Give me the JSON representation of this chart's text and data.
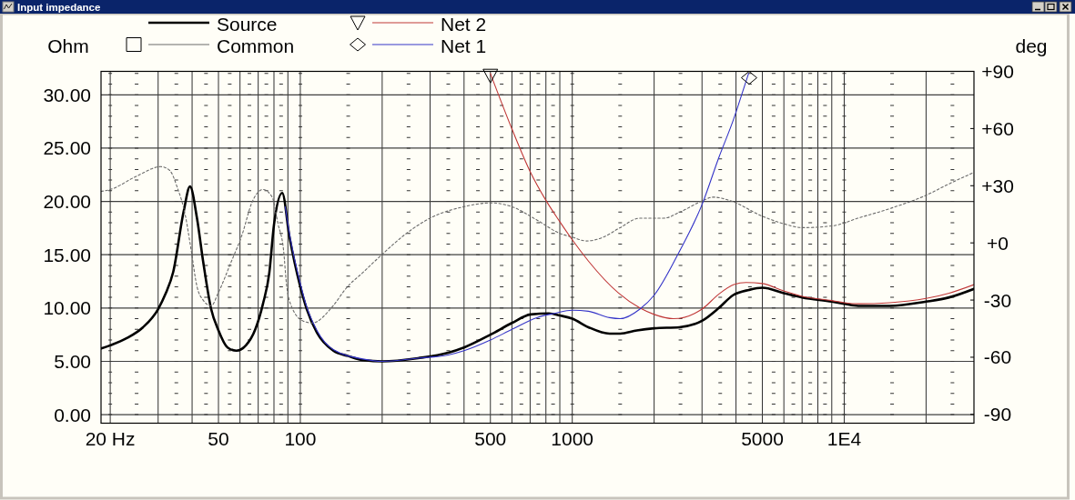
{
  "chart_data": {
    "type": "line",
    "title": "Input impedance",
    "ylabel": "Ohm",
    "y2label": "deg",
    "log": "x",
    "grid": true,
    "legend": "top",
    "xlim": [
      18.5,
      30000
    ],
    "ylim": [
      -0.8,
      32.2
    ],
    "y2lim": [
      -94.6,
      90
    ],
    "xticks": [
      {
        "value": 20,
        "label": "20 Hz"
      },
      {
        "value": 30,
        "label": null
      },
      {
        "value": 40,
        "label": null
      },
      50,
      {
        "value": 60,
        "label": null
      },
      {
        "value": 70,
        "label": null
      },
      {
        "value": 80,
        "label": null
      },
      {
        "value": 90,
        "label": null
      },
      100,
      {
        "value": 200,
        "label": null
      },
      {
        "value": 300,
        "label": null
      },
      {
        "value": 400,
        "label": null
      },
      500,
      {
        "value": 600,
        "label": null
      },
      {
        "value": 700,
        "label": null
      },
      {
        "value": 800,
        "label": null
      },
      {
        "value": 900,
        "label": null
      },
      1000,
      {
        "value": 2000,
        "label": null
      },
      {
        "value": 3000,
        "label": null
      },
      {
        "value": 4000,
        "label": null
      },
      5000,
      {
        "value": 6000,
        "label": null
      },
      {
        "value": 7000,
        "label": null
      },
      {
        "value": 8000,
        "label": null
      },
      {
        "value": 9000,
        "label": null
      },
      {
        "value": 10000,
        "label": "1E4"
      },
      {
        "value": 20000,
        "label": null
      }
    ],
    "yticks": [
      {
        "value": 0,
        "label": "0.00"
      },
      {
        "value": 5,
        "label": "5.00"
      },
      {
        "value": 10,
        "label": "10.00"
      },
      {
        "value": 15,
        "label": "15.00"
      },
      {
        "value": 20,
        "label": "20.00"
      },
      {
        "value": 25,
        "label": "25.00"
      },
      {
        "value": 30,
        "label": "30.00"
      }
    ],
    "y2ticks": [
      {
        "value": -90,
        "label": "-90"
      },
      {
        "value": -60,
        "label": "-60"
      },
      {
        "value": -30,
        "label": "-30"
      },
      {
        "value": 0,
        "label": "+0"
      },
      {
        "value": 30,
        "label": "+30"
      },
      {
        "value": 60,
        "label": "+60"
      },
      {
        "value": 90,
        "label": "+90"
      }
    ],
    "series": [
      {
        "name": "Source",
        "color": "#000000",
        "x": [
          18.5,
          20,
          23.1,
          26.4,
          30,
          31.9,
          34.1,
          37.2,
          39.3,
          41.7,
          43.9,
          47,
          50,
          54,
          58.2,
          63.1,
          68.3,
          72.9,
          76.9,
          80,
          85.8,
          91.2,
          100,
          105.6,
          115.1,
          132.2,
          150,
          171.5,
          200,
          271,
          350,
          400,
          500,
          600,
          703,
          820,
          900,
          1000,
          1147,
          1371,
          1500,
          1727,
          2000,
          2476,
          3000,
          3457,
          3900,
          4466,
          5000,
          6000,
          7000,
          9000,
          10000,
          11250,
          14720,
          20000,
          24320,
          30000
        ],
        "values": [
          6.2,
          6.5,
          7.2,
          8.2,
          9.9,
          11.3,
          13.4,
          19.0,
          21.4,
          18.4,
          14.4,
          9.9,
          7.9,
          6.3,
          6.0,
          6.5,
          8.0,
          10.4,
          13.3,
          17.8,
          20.8,
          16.7,
          12.0,
          9.9,
          7.7,
          6.0,
          5.5,
          5.1,
          5.0,
          5.3,
          5.8,
          6.3,
          7.5,
          8.6,
          9.4,
          9.5,
          9.3,
          9.0,
          8.2,
          7.6,
          7.6,
          7.9,
          8.1,
          8.2,
          8.8,
          10.0,
          11.2,
          11.7,
          11.9,
          11.4,
          11.0,
          10.6,
          10.4,
          10.2,
          10.2,
          10.6,
          11.0,
          11.8
        ]
      },
      {
        "name": "Common",
        "color": "#6a6a6a",
        "axis": "y2",
        "line_style": "dotted",
        "x": [
          18.5,
          20,
          25,
          30.7,
          33.1,
          35.3,
          37.7,
          39.6,
          41.7,
          43.9,
          47,
          50,
          55.3,
          61.3,
          66.3,
          72.9,
          78.8,
          82.8,
          86.8,
          89,
          93.2,
          102.5,
          110.6,
          132,
          147,
          171.5,
          200,
          245.7,
          300,
          400,
          500,
          600,
          741,
          900,
          1000,
          1130,
          1300,
          1500,
          1773,
          2178,
          2476,
          3000,
          3296,
          3835,
          5000,
          6000,
          7000,
          9120,
          11250,
          14720,
          20000,
          24320,
          30000
        ],
        "values": [
          27,
          28,
          35,
          40,
          38,
          29,
          15,
          -3,
          -23,
          -30,
          -33,
          -26,
          -11,
          5,
          21,
          28,
          24,
          10,
          -4,
          -22,
          -34,
          -41,
          -42,
          -33,
          -24,
          -15,
          -6,
          5,
          13,
          19,
          21,
          19,
          12,
          5,
          3,
          1,
          3,
          8,
          13,
          13,
          16,
          22,
          24,
          22,
          14,
          10,
          8,
          9,
          13,
          18,
          25,
          31,
          37
        ]
      },
      {
        "name": "Net 2",
        "color": "#c03838",
        "x": [
          500,
          600,
          700,
          800,
          900,
          1000,
          1147,
          1480,
          1773,
          2000,
          2351,
          3000,
          3457,
          3930,
          4354,
          5000,
          6000,
          7000,
          9000,
          10000,
          11250,
          14720,
          20000,
          24320,
          30000
        ],
        "values": [
          32.0,
          26.8,
          22.8,
          20.1,
          18.1,
          16.4,
          14.4,
          11.4,
          10.0,
          9.4,
          9.0,
          9.9,
          11.3,
          12.2,
          12.4,
          12.3,
          11.6,
          11.1,
          10.7,
          10.5,
          10.4,
          10.5,
          10.9,
          11.4,
          12.2
        ]
      },
      {
        "name": "Net 1",
        "color": "#3434c8",
        "x": [
          88,
          91.2,
          100,
          105.6,
          115.1,
          132.2,
          171.5,
          200,
          271,
          350,
          400,
          500,
          600,
          741,
          860,
          1000,
          1147,
          1371,
          1500,
          1773,
          2000,
          2476,
          3000,
          3457,
          3930,
          4245,
          4450
        ],
        "values": [
          19.5,
          17.0,
          12.3,
          10.1,
          7.9,
          6.1,
          5.2,
          5.0,
          5.3,
          5.6,
          6.0,
          7.0,
          8.0,
          9.1,
          9.5,
          9.8,
          9.7,
          9.1,
          9.0,
          9.9,
          11.2,
          15.3,
          19.7,
          24.1,
          27.8,
          30.4,
          32.0
        ]
      },
      {
        "type": "scatter",
        "color": "#000000",
        "marker": "triangle",
        "x": [
          500
        ],
        "values": [
          31.8
        ]
      },
      {
        "type": "scatter",
        "color": "#000000",
        "marker": "diamond",
        "x": [
          4470
        ],
        "values": [
          31.6
        ]
      }
    ]
  }
}
